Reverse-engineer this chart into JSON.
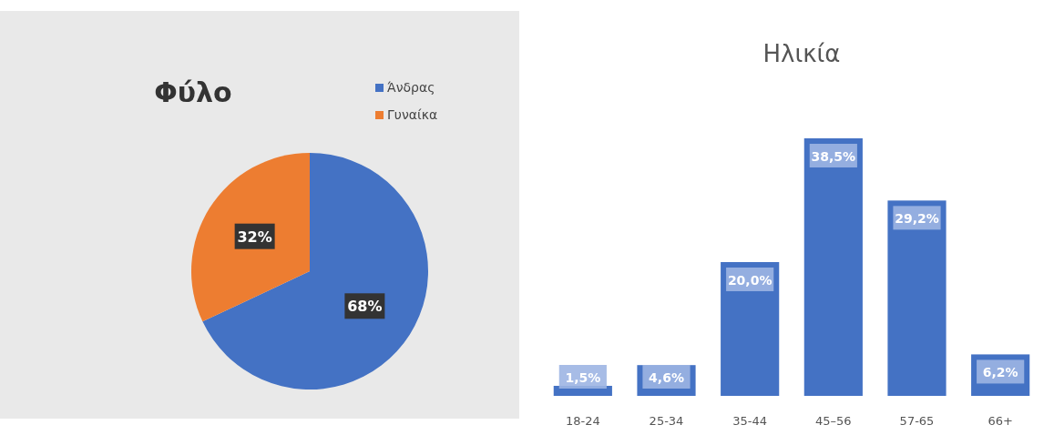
{
  "chart_data": [
    {
      "type": "pie",
      "title": "Φύλο",
      "categories": [
        "Άνδρας",
        "Γυναίκα"
      ],
      "values": [
        68,
        32
      ],
      "colors": [
        "#4472c4",
        "#ed7d31"
      ],
      "value_labels": [
        "68%",
        "32%"
      ],
      "legend": "top right"
    },
    {
      "type": "bar",
      "title": "Ηλικία",
      "categories": [
        "18-24",
        "25-34",
        "35-44",
        "45–56",
        "57-65",
        "66+"
      ],
      "values": [
        1.5,
        4.6,
        20.0,
        38.5,
        29.2,
        6.2
      ],
      "color": "#4472c4",
      "value_labels": [
        "1,5%",
        "4,6%",
        "20,0%",
        "38,5%",
        "29,2%",
        "6,2%"
      ]
    }
  ]
}
